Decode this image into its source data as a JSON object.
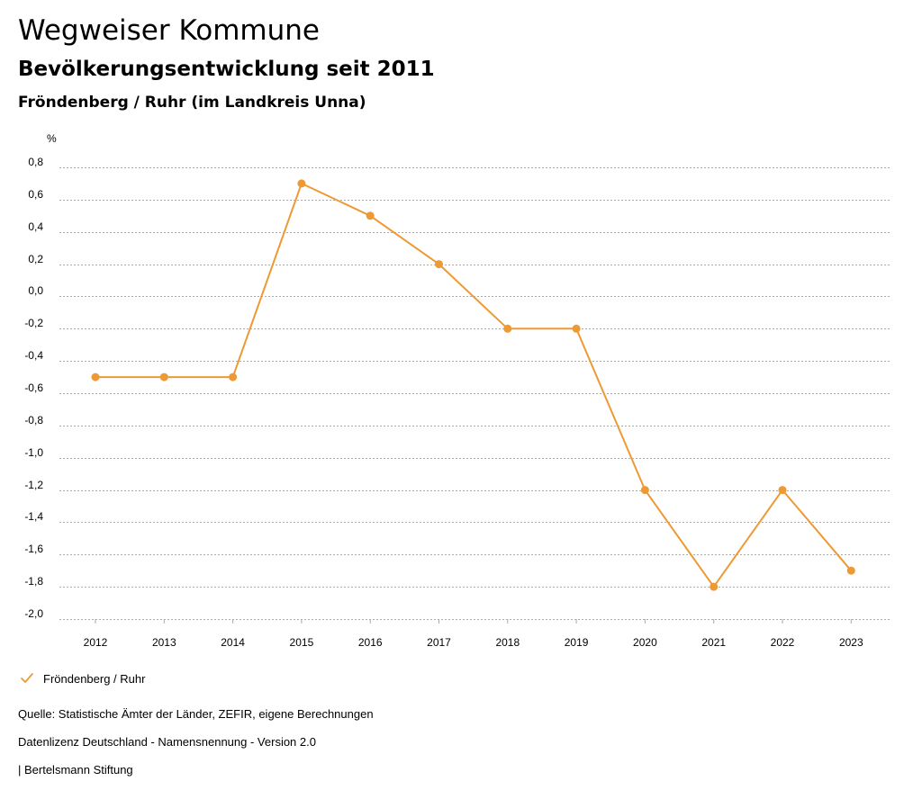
{
  "header": {
    "title": "Wegweiser Kommune",
    "subtitle": "Bevölkerungsentwicklung seit 2011",
    "region": "Fröndenberg / Ruhr (im Landkreis Unna)"
  },
  "colors": {
    "series": "#ed9a34",
    "grid": "#aaaaaa"
  },
  "chart_data": {
    "type": "line",
    "ylabel": "%",
    "ylim": [
      -2.0,
      0.8
    ],
    "yticks": [
      0.8,
      0.6,
      0.4,
      0.2,
      0.0,
      -0.2,
      -0.4,
      -0.6,
      -0.8,
      -1.0,
      -1.2,
      -1.4,
      -1.6,
      -1.8,
      -2.0
    ],
    "ytick_labels": [
      "0,8",
      "0,6",
      "0,4",
      "0,2",
      "0,0",
      "-0,2",
      "-0,4",
      "-0,6",
      "-0,8",
      "-1,0",
      "-1,2",
      "-1,4",
      "-1,6",
      "-1,8",
      "-2,0"
    ],
    "x": [
      "2012",
      "2013",
      "2014",
      "2015",
      "2016",
      "2017",
      "2018",
      "2019",
      "2020",
      "2021",
      "2022",
      "2023"
    ],
    "series": [
      {
        "name": "Fröndenberg / Ruhr",
        "values": [
          -0.5,
          -0.5,
          -0.5,
          0.7,
          0.5,
          0.2,
          -0.2,
          -0.2,
          -1.2,
          -1.8,
          -1.2,
          -1.7
        ]
      }
    ],
    "grid": true,
    "legend": "bottom-left"
  },
  "footer": {
    "source": "Quelle: Statistische Ämter der Länder, ZEFIR, eigene Berechnungen",
    "license": "Datenlizenz Deutschland - Namensnennung - Version 2.0",
    "publisher": "| Bertelsmann Stiftung"
  }
}
